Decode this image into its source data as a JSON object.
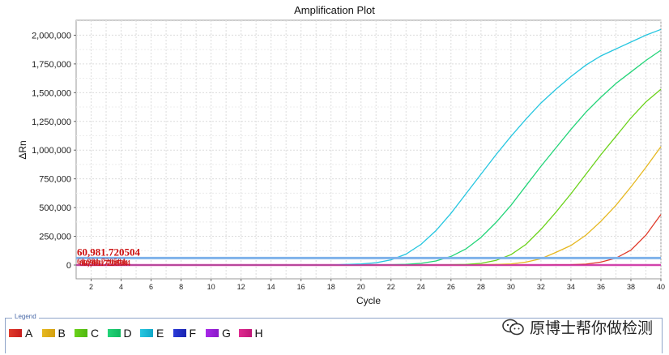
{
  "chart_data": {
    "type": "line",
    "title": "Amplification Plot",
    "xlabel": "Cycle",
    "ylabel": "ΔRn",
    "xlim": [
      1,
      40
    ],
    "ylim": [
      -120000,
      2130000
    ],
    "x_ticks": [
      2,
      4,
      6,
      8,
      10,
      12,
      14,
      16,
      18,
      20,
      22,
      24,
      26,
      28,
      30,
      32,
      34,
      36,
      38,
      40
    ],
    "y_ticks": [
      0,
      250000,
      500000,
      750000,
      1000000,
      1250000,
      1500000,
      1750000,
      2000000
    ],
    "y_tick_labels": [
      "0",
      "250,000",
      "500,000",
      "750,000",
      "1,000,000",
      "1,250,000",
      "1,500,000",
      "1,750,000",
      "2,000,000"
    ],
    "grid": true,
    "x": [
      1,
      2,
      3,
      4,
      5,
      6,
      7,
      8,
      9,
      10,
      11,
      12,
      13,
      14,
      15,
      16,
      17,
      18,
      19,
      20,
      21,
      22,
      23,
      24,
      25,
      26,
      27,
      28,
      29,
      30,
      31,
      32,
      33,
      34,
      35,
      36,
      37,
      38,
      39,
      40
    ],
    "series": [
      {
        "name": "A",
        "color": "#e03a2a",
        "values": [
          0,
          0,
          0,
          0,
          0,
          0,
          0,
          0,
          0,
          0,
          0,
          0,
          0,
          0,
          0,
          0,
          0,
          0,
          0,
          0,
          0,
          0,
          0,
          0,
          0,
          0,
          0,
          0,
          0,
          0,
          0,
          0,
          1000,
          3000,
          8000,
          25000,
          60000,
          130000,
          260000,
          440000
        ]
      },
      {
        "name": "B",
        "color": "#e6b820",
        "values": [
          0,
          0,
          0,
          0,
          0,
          0,
          0,
          0,
          0,
          0,
          0,
          0,
          0,
          0,
          0,
          0,
          0,
          0,
          0,
          0,
          0,
          0,
          0,
          0,
          0,
          0,
          0,
          2000,
          5000,
          10000,
          25000,
          55000,
          110000,
          170000,
          260000,
          380000,
          520000,
          680000,
          850000,
          1030000
        ]
      },
      {
        "name": "C",
        "color": "#6ad21a",
        "values": [
          0,
          0,
          0,
          0,
          0,
          0,
          0,
          0,
          0,
          0,
          0,
          0,
          0,
          0,
          0,
          0,
          0,
          0,
          0,
          0,
          0,
          0,
          0,
          0,
          0,
          2000,
          5000,
          15000,
          40000,
          90000,
          180000,
          310000,
          460000,
          620000,
          790000,
          960000,
          1120000,
          1280000,
          1420000,
          1530000
        ]
      },
      {
        "name": "D",
        "color": "#22d478",
        "values": [
          0,
          0,
          0,
          0,
          0,
          0,
          0,
          0,
          0,
          0,
          0,
          0,
          0,
          0,
          0,
          0,
          0,
          0,
          0,
          0,
          0,
          2000,
          6000,
          15000,
          35000,
          75000,
          140000,
          240000,
          370000,
          520000,
          690000,
          860000,
          1020000,
          1180000,
          1330000,
          1460000,
          1580000,
          1680000,
          1780000,
          1870000
        ]
      },
      {
        "name": "E",
        "color": "#26c6e0",
        "values": [
          0,
          0,
          0,
          0,
          0,
          0,
          0,
          0,
          0,
          0,
          0,
          0,
          0,
          0,
          0,
          0,
          0,
          0,
          5000,
          10000,
          20000,
          45000,
          95000,
          180000,
          300000,
          450000,
          620000,
          790000,
          960000,
          1120000,
          1270000,
          1410000,
          1530000,
          1640000,
          1740000,
          1820000,
          1880000,
          1940000,
          2000000,
          2050000
        ]
      },
      {
        "name": "F",
        "color": "#2a3ad8",
        "values": [
          0,
          0,
          0,
          0,
          0,
          0,
          0,
          0,
          0,
          0,
          0,
          0,
          0,
          0,
          0,
          0,
          0,
          0,
          0,
          0,
          0,
          0,
          0,
          0,
          0,
          0,
          0,
          0,
          0,
          0,
          0,
          0,
          0,
          0,
          0,
          0,
          0,
          0,
          0,
          0
        ]
      },
      {
        "name": "G",
        "color": "#a828e8",
        "values": [
          0,
          0,
          0,
          0,
          0,
          0,
          0,
          0,
          0,
          0,
          0,
          0,
          0,
          0,
          0,
          0,
          0,
          0,
          0,
          0,
          0,
          0,
          0,
          0,
          0,
          0,
          0,
          0,
          0,
          0,
          0,
          0,
          0,
          0,
          0,
          0,
          0,
          0,
          0,
          0
        ]
      },
      {
        "name": "H",
        "color": "#e02a90",
        "values": [
          0,
          0,
          0,
          0,
          0,
          0,
          0,
          0,
          0,
          0,
          0,
          0,
          0,
          0,
          0,
          0,
          0,
          0,
          0,
          0,
          0,
          0,
          0,
          0,
          0,
          0,
          0,
          0,
          0,
          0,
          0,
          0,
          0,
          0,
          0,
          0,
          0,
          0,
          0,
          0
        ]
      }
    ],
    "threshold": {
      "value": 60981.720504,
      "label": "60,981.720504",
      "color": "#7fb2ea"
    },
    "baseline_line_color": "#f0a0d8",
    "overlap_label": "60,981.720504"
  },
  "legend": {
    "title": "Legend",
    "items": [
      {
        "label": "A",
        "color": "#e03a2a",
        "color2": "#c81e1e"
      },
      {
        "label": "B",
        "color": "#e6b820",
        "color2": "#d4a010"
      },
      {
        "label": "C",
        "color": "#6ad21a",
        "color2": "#50b810"
      },
      {
        "label": "D",
        "color": "#22d478",
        "color2": "#10b860"
      },
      {
        "label": "E",
        "color": "#26c6e0",
        "color2": "#10a8c8"
      },
      {
        "label": "F",
        "color": "#2a3ad8",
        "color2": "#1a24b0"
      },
      {
        "label": "G",
        "color": "#a828e8",
        "color2": "#8a18c8"
      },
      {
        "label": "H",
        "color": "#e02a90",
        "color2": "#c01878"
      }
    ]
  },
  "watermark": {
    "text": "原博士帮你做检测",
    "icon": "wechat-icon"
  }
}
